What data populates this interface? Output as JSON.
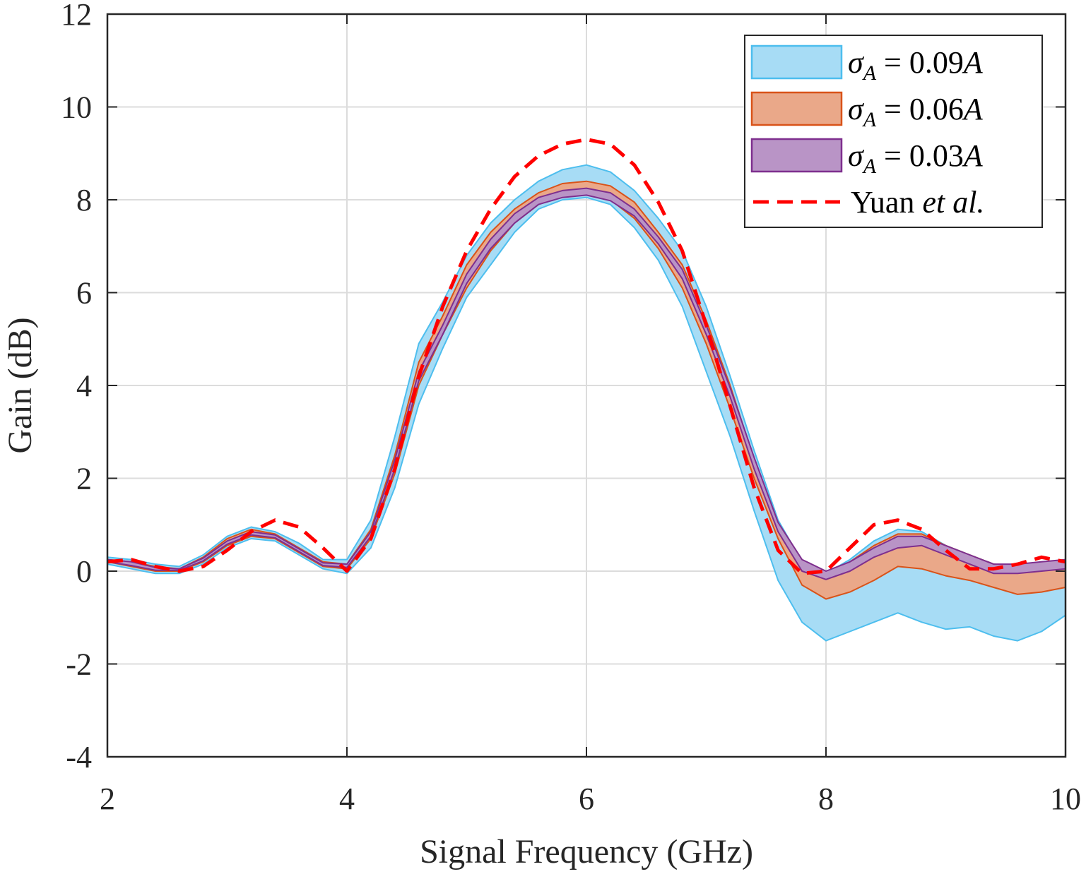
{
  "chart_data": {
    "type": "area",
    "xlabel": "Signal Frequency (GHz)",
    "ylabel": "Gain (dB)",
    "xlim": [
      2,
      10
    ],
    "ylim": [
      -4,
      12
    ],
    "xticks": [
      2,
      4,
      6,
      8,
      10
    ],
    "xtick_labels": [
      "2",
      "4",
      "6",
      "8",
      "10"
    ],
    "yticks": [
      -4,
      -2,
      0,
      2,
      4,
      6,
      8,
      10,
      12
    ],
    "ytick_labels": [
      "-4",
      "-2",
      "0",
      "2",
      "4",
      "6",
      "8",
      "10",
      "12"
    ],
    "grid": true,
    "legend_position": "top-right",
    "x": [
      2.0,
      2.2,
      2.4,
      2.6,
      2.8,
      3.0,
      3.2,
      3.4,
      3.6,
      3.8,
      4.0,
      4.2,
      4.4,
      4.6,
      4.8,
      5.0,
      5.2,
      5.4,
      5.6,
      5.8,
      6.0,
      6.2,
      6.4,
      6.6,
      6.8,
      7.0,
      7.2,
      7.4,
      7.6,
      7.8,
      8.0,
      8.2,
      8.4,
      8.6,
      8.8,
      9.0,
      9.2,
      9.4,
      9.6,
      9.8,
      10.0
    ],
    "series": [
      {
        "name": "σ_A = 0.09A",
        "label_main": "σ",
        "label_sub": "A",
        "label_rest": " = 0.09",
        "label_var": "A",
        "kind": "band",
        "fill": "#a7dcf5",
        "edge": "#4dbeee",
        "upper": [
          0.3,
          0.25,
          0.15,
          0.1,
          0.35,
          0.75,
          0.95,
          0.85,
          0.6,
          0.25,
          0.25,
          1.1,
          2.9,
          4.9,
          5.8,
          6.8,
          7.5,
          8.0,
          8.4,
          8.65,
          8.75,
          8.6,
          8.2,
          7.6,
          6.9,
          5.7,
          4.2,
          2.6,
          1.1,
          0.2,
          -0.05,
          0.25,
          0.65,
          0.9,
          0.85,
          0.55,
          0.35,
          0.15,
          0.1,
          0.05,
          0.05
        ],
        "lower": [
          0.15,
          0.05,
          -0.05,
          -0.05,
          0.15,
          0.5,
          0.7,
          0.65,
          0.35,
          0.05,
          -0.05,
          0.5,
          1.8,
          3.6,
          4.8,
          5.9,
          6.6,
          7.3,
          7.8,
          8.0,
          8.05,
          7.9,
          7.4,
          6.7,
          5.7,
          4.3,
          2.9,
          1.3,
          -0.2,
          -1.1,
          -1.5,
          -1.3,
          -1.1,
          -0.9,
          -1.1,
          -1.25,
          -1.2,
          -1.4,
          -1.5,
          -1.3,
          -0.95
        ]
      },
      {
        "name": "σ_A = 0.06A",
        "label_main": "σ",
        "label_sub": "A",
        "label_rest": " = 0.06",
        "label_var": "A",
        "kind": "band",
        "fill": "#eaa889",
        "edge": "#d95319",
        "upper": [
          0.25,
          0.2,
          0.1,
          0.05,
          0.3,
          0.7,
          0.9,
          0.8,
          0.5,
          0.2,
          0.15,
          0.9,
          2.5,
          4.5,
          5.5,
          6.6,
          7.3,
          7.8,
          8.15,
          8.35,
          8.4,
          8.3,
          7.95,
          7.3,
          6.6,
          5.4,
          4.0,
          2.4,
          1.0,
          0.15,
          -0.05,
          0.2,
          0.55,
          0.8,
          0.8,
          0.55,
          0.35,
          0.15,
          0.1,
          0.1,
          0.15
        ],
        "lower": [
          0.2,
          0.1,
          0.0,
          0.0,
          0.2,
          0.55,
          0.75,
          0.7,
          0.4,
          0.1,
          0.05,
          0.7,
          2.1,
          4.0,
          5.1,
          6.1,
          6.9,
          7.5,
          7.9,
          8.1,
          8.15,
          8.0,
          7.6,
          6.95,
          6.1,
          4.9,
          3.5,
          2.0,
          0.7,
          -0.3,
          -0.6,
          -0.45,
          -0.2,
          0.1,
          0.05,
          -0.1,
          -0.2,
          -0.35,
          -0.5,
          -0.45,
          -0.35
        ]
      },
      {
        "name": "σ_A = 0.03A",
        "label_main": "σ",
        "label_sub": "A",
        "label_rest": " = 0.03",
        "label_var": "A",
        "kind": "band",
        "fill": "#b994c6",
        "edge": "#7e2f8e",
        "upper": [
          0.25,
          0.2,
          0.08,
          0.05,
          0.28,
          0.65,
          0.85,
          0.78,
          0.48,
          0.18,
          0.15,
          0.85,
          2.4,
          4.3,
          5.3,
          6.4,
          7.15,
          7.7,
          8.05,
          8.2,
          8.25,
          8.15,
          7.8,
          7.2,
          6.5,
          5.3,
          3.95,
          2.45,
          1.05,
          0.25,
          0.0,
          0.2,
          0.5,
          0.75,
          0.75,
          0.55,
          0.35,
          0.15,
          0.15,
          0.2,
          0.25
        ],
        "lower": [
          0.2,
          0.12,
          0.02,
          0.02,
          0.22,
          0.58,
          0.78,
          0.72,
          0.42,
          0.12,
          0.08,
          0.75,
          2.2,
          4.1,
          5.1,
          6.2,
          6.95,
          7.5,
          7.9,
          8.05,
          8.1,
          7.98,
          7.65,
          7.05,
          6.3,
          5.1,
          3.75,
          2.2,
          0.85,
          0.0,
          -0.18,
          0.0,
          0.3,
          0.5,
          0.55,
          0.35,
          0.15,
          -0.05,
          -0.05,
          0.0,
          0.05
        ]
      },
      {
        "name": "Yuan et al.",
        "label_main": "Yuan ",
        "label_italic": "et al.",
        "kind": "line",
        "color": "#ff0000",
        "y": [
          0.2,
          0.25,
          0.1,
          0.0,
          0.1,
          0.45,
          0.85,
          1.1,
          0.95,
          0.5,
          0.0,
          0.7,
          2.2,
          4.2,
          5.7,
          6.9,
          7.8,
          8.5,
          8.95,
          9.2,
          9.3,
          9.2,
          8.75,
          7.95,
          6.9,
          5.3,
          3.55,
          1.8,
          0.45,
          -0.05,
          0.0,
          0.5,
          1.0,
          1.1,
          0.9,
          0.45,
          0.05,
          0.05,
          0.15,
          0.3,
          0.2
        ]
      }
    ]
  }
}
